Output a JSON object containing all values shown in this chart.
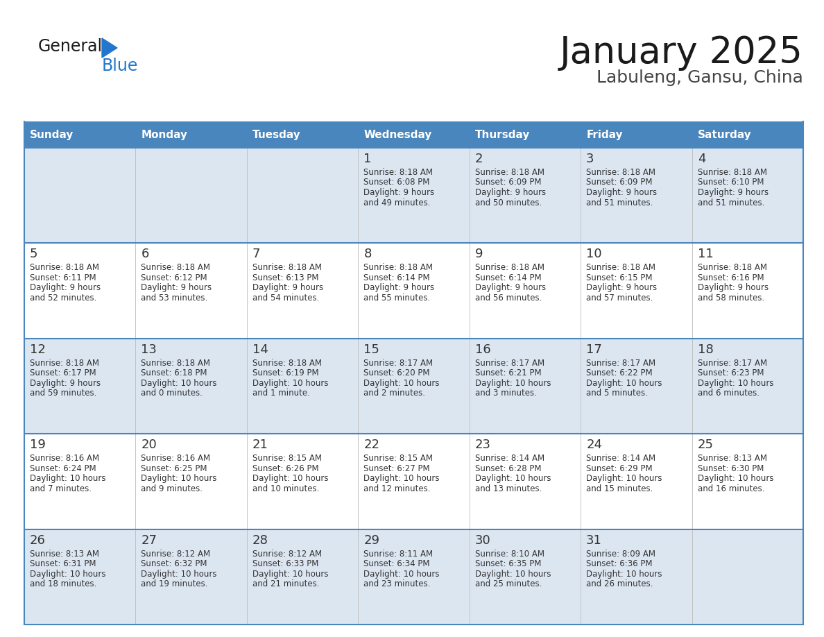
{
  "title": "January 2025",
  "subtitle": "Labuleng, Gansu, China",
  "days_of_week": [
    "Sunday",
    "Monday",
    "Tuesday",
    "Wednesday",
    "Thursday",
    "Friday",
    "Saturday"
  ],
  "header_bg": "#4a86be",
  "header_text": "#ffffff",
  "row_bg_odd": "#dce6f1",
  "row_bg_even": "#ffffff",
  "border_color": "#4a86be",
  "day_number_color": "#333333",
  "cell_text_color": "#333333",
  "title_color": "#1a1a1a",
  "subtitle_color": "#444444",
  "logo_general_color": "#1a1a1a",
  "logo_blue_color": "#2277cc",
  "logo_triangle_color": "#2277cc",
  "calendar": [
    [
      null,
      null,
      null,
      {
        "day": 1,
        "sunrise": "8:18 AM",
        "sunset": "6:08 PM",
        "daylight": "9 hours and 49 minutes."
      },
      {
        "day": 2,
        "sunrise": "8:18 AM",
        "sunset": "6:09 PM",
        "daylight": "9 hours and 50 minutes."
      },
      {
        "day": 3,
        "sunrise": "8:18 AM",
        "sunset": "6:09 PM",
        "daylight": "9 hours and 51 minutes."
      },
      {
        "day": 4,
        "sunrise": "8:18 AM",
        "sunset": "6:10 PM",
        "daylight": "9 hours and 51 minutes."
      }
    ],
    [
      {
        "day": 5,
        "sunrise": "8:18 AM",
        "sunset": "6:11 PM",
        "daylight": "9 hours and 52 minutes."
      },
      {
        "day": 6,
        "sunrise": "8:18 AM",
        "sunset": "6:12 PM",
        "daylight": "9 hours and 53 minutes."
      },
      {
        "day": 7,
        "sunrise": "8:18 AM",
        "sunset": "6:13 PM",
        "daylight": "9 hours and 54 minutes."
      },
      {
        "day": 8,
        "sunrise": "8:18 AM",
        "sunset": "6:14 PM",
        "daylight": "9 hours and 55 minutes."
      },
      {
        "day": 9,
        "sunrise": "8:18 AM",
        "sunset": "6:14 PM",
        "daylight": "9 hours and 56 minutes."
      },
      {
        "day": 10,
        "sunrise": "8:18 AM",
        "sunset": "6:15 PM",
        "daylight": "9 hours and 57 minutes."
      },
      {
        "day": 11,
        "sunrise": "8:18 AM",
        "sunset": "6:16 PM",
        "daylight": "9 hours and 58 minutes."
      }
    ],
    [
      {
        "day": 12,
        "sunrise": "8:18 AM",
        "sunset": "6:17 PM",
        "daylight": "9 hours and 59 minutes."
      },
      {
        "day": 13,
        "sunrise": "8:18 AM",
        "sunset": "6:18 PM",
        "daylight": "10 hours and 0 minutes."
      },
      {
        "day": 14,
        "sunrise": "8:18 AM",
        "sunset": "6:19 PM",
        "daylight": "10 hours and 1 minute."
      },
      {
        "day": 15,
        "sunrise": "8:17 AM",
        "sunset": "6:20 PM",
        "daylight": "10 hours and 2 minutes."
      },
      {
        "day": 16,
        "sunrise": "8:17 AM",
        "sunset": "6:21 PM",
        "daylight": "10 hours and 3 minutes."
      },
      {
        "day": 17,
        "sunrise": "8:17 AM",
        "sunset": "6:22 PM",
        "daylight": "10 hours and 5 minutes."
      },
      {
        "day": 18,
        "sunrise": "8:17 AM",
        "sunset": "6:23 PM",
        "daylight": "10 hours and 6 minutes."
      }
    ],
    [
      {
        "day": 19,
        "sunrise": "8:16 AM",
        "sunset": "6:24 PM",
        "daylight": "10 hours and 7 minutes."
      },
      {
        "day": 20,
        "sunrise": "8:16 AM",
        "sunset": "6:25 PM",
        "daylight": "10 hours and 9 minutes."
      },
      {
        "day": 21,
        "sunrise": "8:15 AM",
        "sunset": "6:26 PM",
        "daylight": "10 hours and 10 minutes."
      },
      {
        "day": 22,
        "sunrise": "8:15 AM",
        "sunset": "6:27 PM",
        "daylight": "10 hours and 12 minutes."
      },
      {
        "day": 23,
        "sunrise": "8:14 AM",
        "sunset": "6:28 PM",
        "daylight": "10 hours and 13 minutes."
      },
      {
        "day": 24,
        "sunrise": "8:14 AM",
        "sunset": "6:29 PM",
        "daylight": "10 hours and 15 minutes."
      },
      {
        "day": 25,
        "sunrise": "8:13 AM",
        "sunset": "6:30 PM",
        "daylight": "10 hours and 16 minutes."
      }
    ],
    [
      {
        "day": 26,
        "sunrise": "8:13 AM",
        "sunset": "6:31 PM",
        "daylight": "10 hours and 18 minutes."
      },
      {
        "day": 27,
        "sunrise": "8:12 AM",
        "sunset": "6:32 PM",
        "daylight": "10 hours and 19 minutes."
      },
      {
        "day": 28,
        "sunrise": "8:12 AM",
        "sunset": "6:33 PM",
        "daylight": "10 hours and 21 minutes."
      },
      {
        "day": 29,
        "sunrise": "8:11 AM",
        "sunset": "6:34 PM",
        "daylight": "10 hours and 23 minutes."
      },
      {
        "day": 30,
        "sunrise": "8:10 AM",
        "sunset": "6:35 PM",
        "daylight": "10 hours and 25 minutes."
      },
      {
        "day": 31,
        "sunrise": "8:09 AM",
        "sunset": "6:36 PM",
        "daylight": "10 hours and 26 minutes."
      },
      null
    ]
  ]
}
